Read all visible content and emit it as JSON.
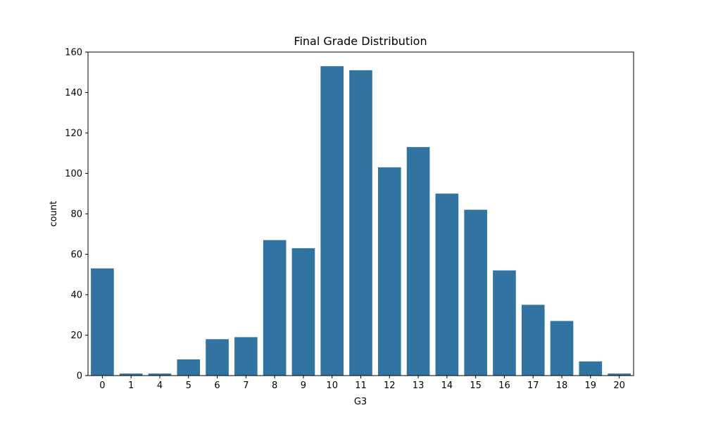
{
  "chart_data": {
    "type": "bar",
    "title": "Final Grade Distribution",
    "xlabel": "G3",
    "ylabel": "count",
    "categories": [
      "0",
      "1",
      "4",
      "5",
      "6",
      "7",
      "8",
      "9",
      "10",
      "11",
      "12",
      "13",
      "14",
      "15",
      "16",
      "17",
      "18",
      "19",
      "20"
    ],
    "values": [
      53,
      1,
      1,
      8,
      18,
      19,
      67,
      63,
      153,
      151,
      103,
      113,
      90,
      82,
      52,
      35,
      27,
      7,
      1
    ],
    "ylim": [
      0,
      160
    ],
    "yticks": [
      0,
      20,
      40,
      60,
      80,
      100,
      120,
      140,
      160
    ],
    "grid": false,
    "bar_color": "#3274a1"
  }
}
